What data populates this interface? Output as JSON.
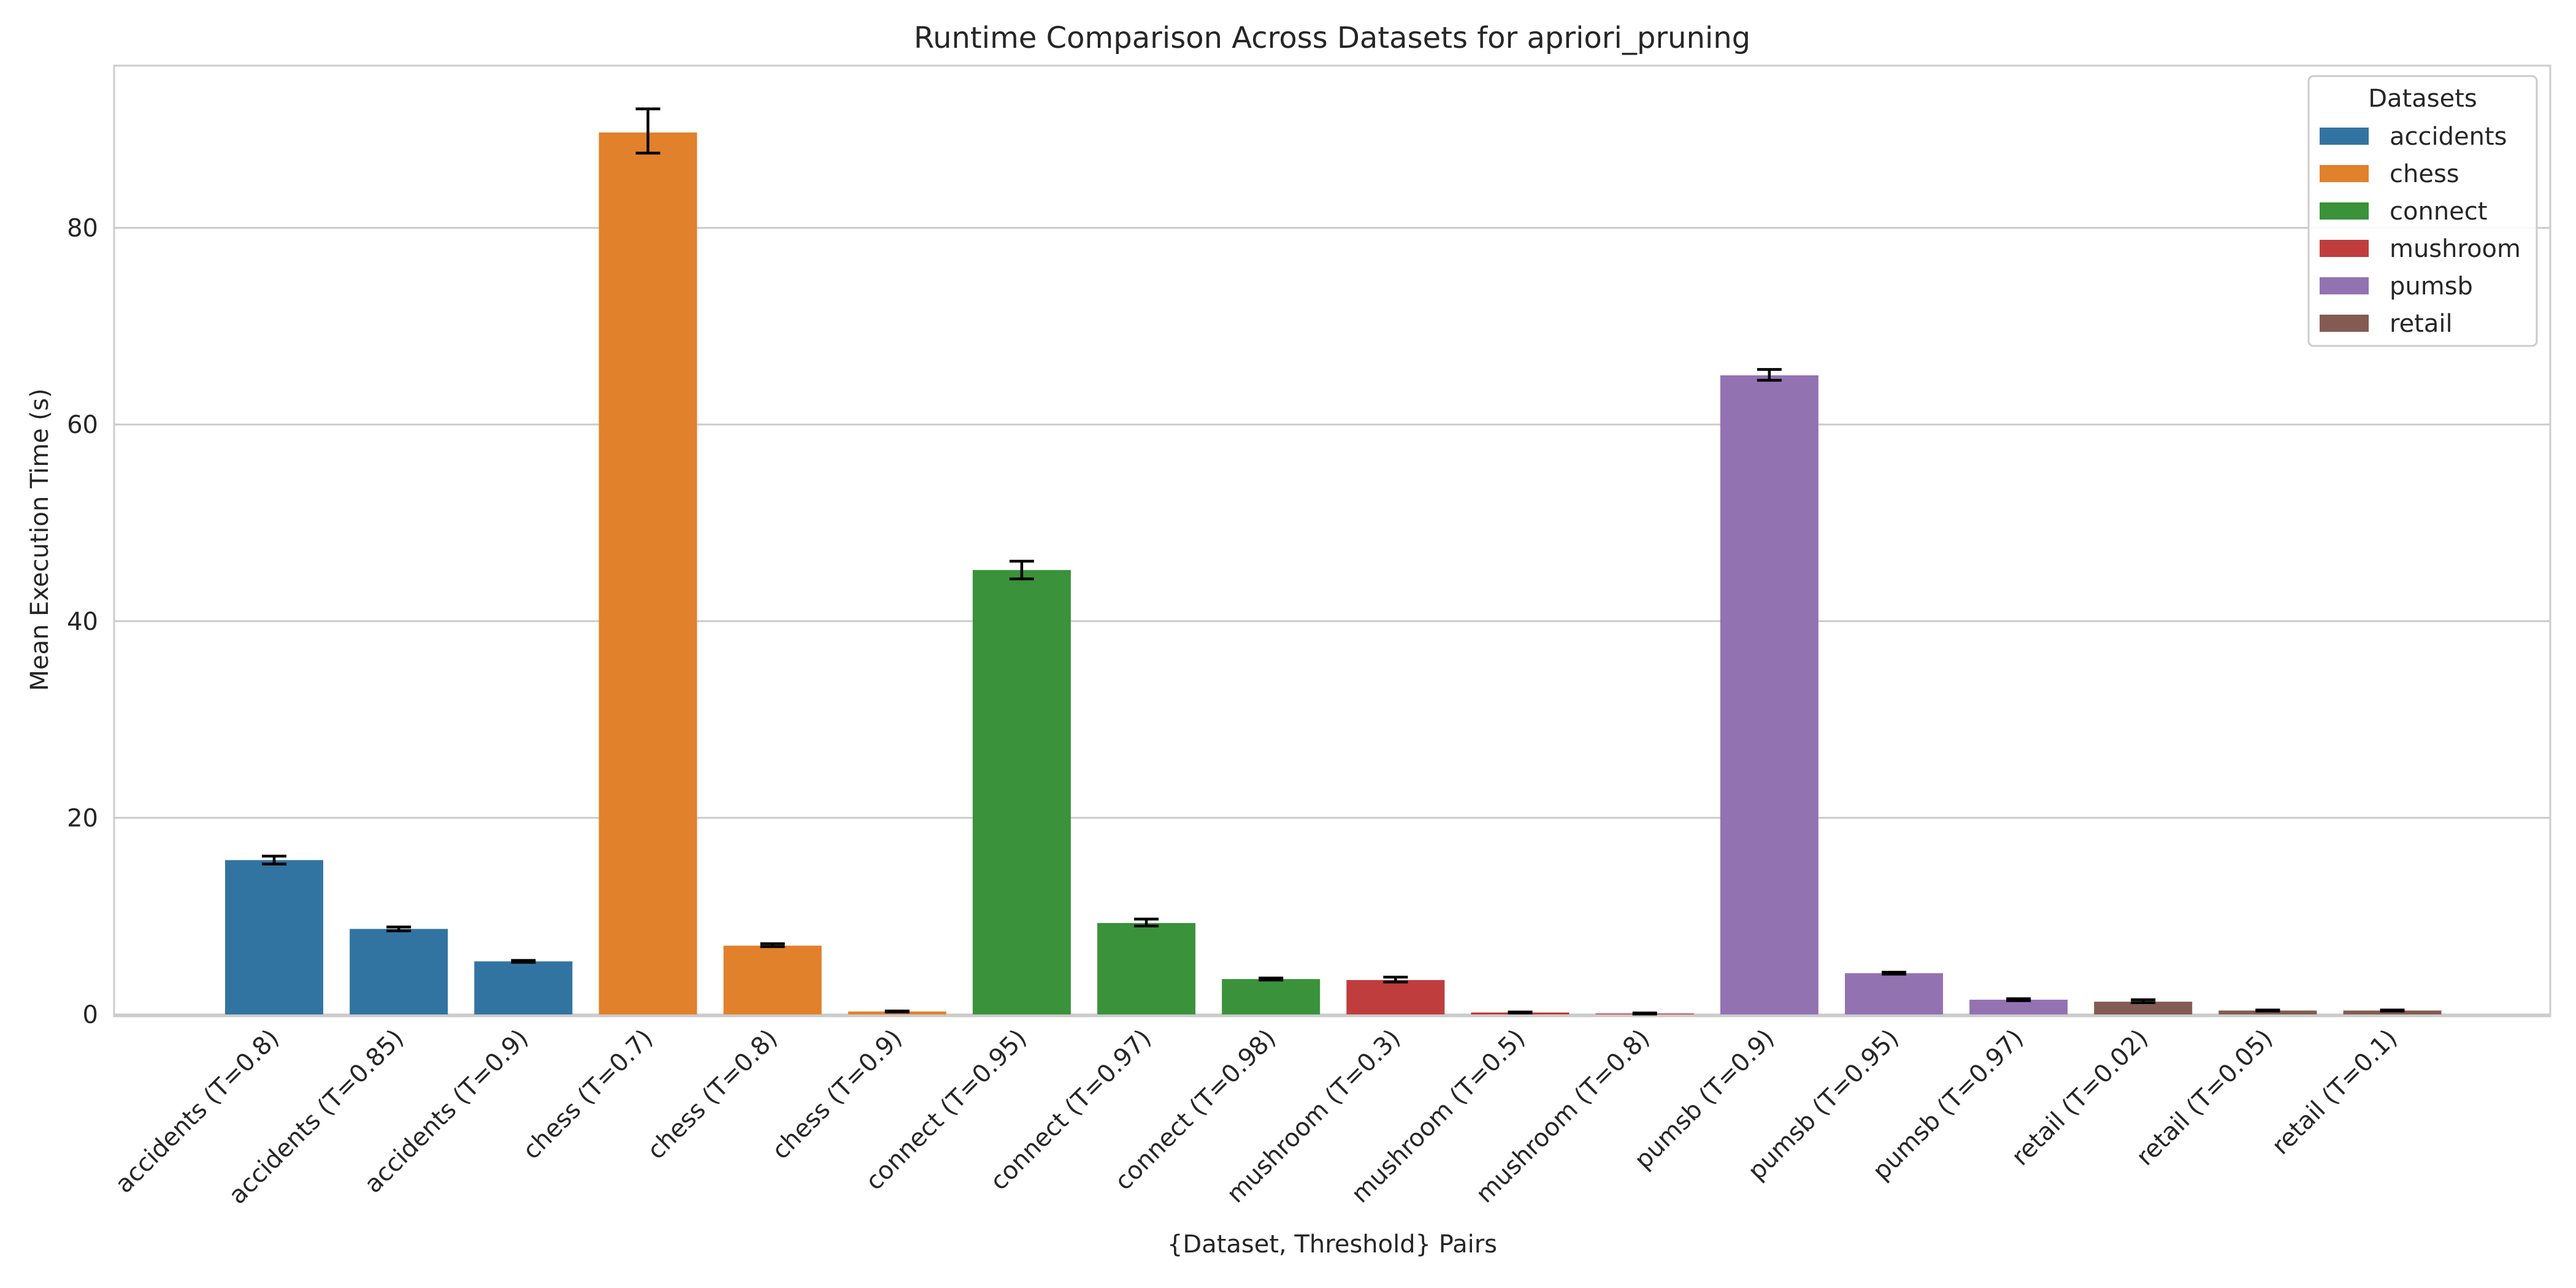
{
  "chart_data": {
    "type": "bar",
    "title": "Runtime Comparison Across Datasets for apriori_pruning",
    "xlabel": "{Dataset, Threshold} Pairs",
    "ylabel": "Mean Execution Time (s)",
    "ylim": [
      0,
      96.5
    ],
    "yticks": [
      0,
      20,
      40,
      60,
      80
    ],
    "grid": "horizontal",
    "legend": {
      "title": "Datasets",
      "position": "top-right",
      "entries": [
        "accidents",
        "chess",
        "connect",
        "mushroom",
        "pumsb",
        "retail"
      ]
    },
    "colors": {
      "accidents": "#3274a1",
      "chess": "#e1812c",
      "connect": "#3a923a",
      "mushroom": "#c03d3e",
      "pumsb": "#9372b2",
      "retail": "#845b53"
    },
    "categories": [
      "accidents (T=0.8)",
      "accidents (T=0.85)",
      "accidents (T=0.9)",
      "chess (T=0.7)",
      "chess (T=0.8)",
      "chess (T=0.9)",
      "connect (T=0.95)",
      "connect (T=0.97)",
      "connect (T=0.98)",
      "mushroom (T=0.3)",
      "mushroom (T=0.5)",
      "mushroom (T=0.8)",
      "pumsb (T=0.9)",
      "pumsb (T=0.95)",
      "pumsb (T=0.97)",
      "retail (T=0.02)",
      "retail (T=0.05)",
      "retail (T=0.1)"
    ],
    "dataset": [
      "accidents",
      "accidents",
      "accidents",
      "chess",
      "chess",
      "chess",
      "connect",
      "connect",
      "connect",
      "mushroom",
      "mushroom",
      "mushroom",
      "pumsb",
      "pumsb",
      "pumsb",
      "retail",
      "retail",
      "retail"
    ],
    "values": [
      15.7,
      8.7,
      5.4,
      89.7,
      7.0,
      0.3,
      45.2,
      9.3,
      3.6,
      3.5,
      0.2,
      0.1,
      65.0,
      4.2,
      1.5,
      1.3,
      0.4,
      0.4
    ],
    "error_low": [
      15.3,
      8.5,
      5.3,
      87.6,
      6.9,
      0.25,
      44.3,
      9.0,
      3.5,
      3.3,
      0.15,
      0.05,
      64.5,
      4.1,
      1.4,
      1.2,
      0.35,
      0.35
    ],
    "error_high": [
      16.1,
      8.9,
      5.5,
      92.1,
      7.2,
      0.35,
      46.1,
      9.7,
      3.7,
      3.8,
      0.25,
      0.15,
      65.6,
      4.3,
      1.6,
      1.5,
      0.45,
      0.45
    ]
  }
}
